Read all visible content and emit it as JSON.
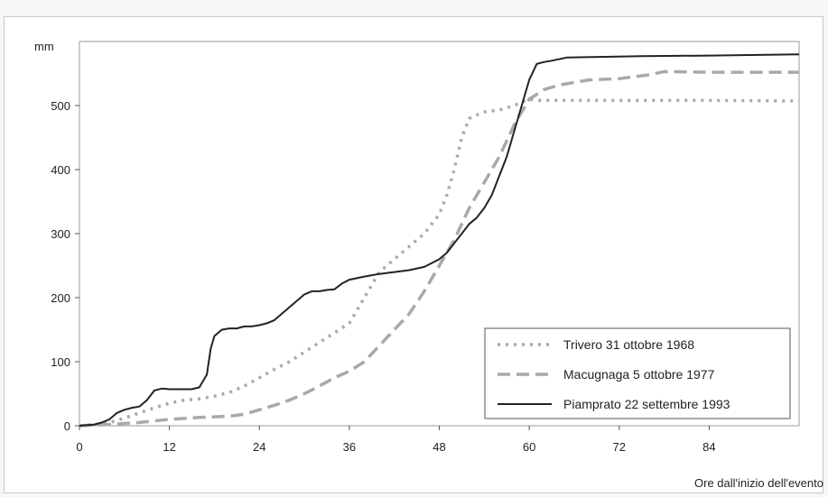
{
  "chart_data": {
    "type": "line",
    "title": "",
    "ylabel": "mm",
    "xlabel": "Ore dall'inizio dell'evento",
    "xlim": [
      0,
      96
    ],
    "ylim": [
      0,
      600
    ],
    "x_ticks": [
      0,
      12,
      24,
      36,
      48,
      60,
      72,
      84
    ],
    "x_tick_labels": [
      "0",
      "12",
      "24",
      "36",
      "48",
      "60",
      "72",
      "84"
    ],
    "y_ticks": [
      0,
      100,
      200,
      300,
      400,
      500
    ],
    "y_tick_labels": [
      "0",
      "100",
      "200",
      "300",
      "400",
      "500"
    ],
    "grid": false,
    "legend_position": "bottom-right",
    "series": [
      {
        "name": "Trivero 31 ottobre 1968",
        "style": "dotted",
        "color": "#a9a9a9",
        "x": [
          0,
          2,
          4,
          6,
          8,
          10,
          12,
          14,
          16,
          18,
          20,
          22,
          24,
          26,
          28,
          30,
          32,
          34,
          36,
          38,
          40,
          42,
          44,
          46,
          48,
          49,
          50,
          51,
          52,
          53,
          54,
          56,
          58,
          60,
          61,
          62,
          64,
          72,
          84,
          96
        ],
        "y": [
          0,
          2,
          5,
          12,
          20,
          28,
          35,
          40,
          42,
          46,
          52,
          62,
          75,
          88,
          100,
          115,
          130,
          145,
          160,
          200,
          240,
          260,
          280,
          300,
          330,
          360,
          400,
          450,
          480,
          485,
          490,
          493,
          500,
          510,
          508,
          508,
          508,
          508,
          508,
          507
        ]
      },
      {
        "name": "Macugnaga 5 ottobre 1977",
        "style": "dashed",
        "color": "#a9a9a9",
        "x": [
          0,
          4,
          8,
          12,
          16,
          20,
          22,
          24,
          26,
          28,
          30,
          32,
          34,
          36,
          38,
          40,
          42,
          44,
          46,
          48,
          50,
          52,
          54,
          56,
          58,
          60,
          62,
          64,
          68,
          72,
          76,
          78,
          84,
          96
        ],
        "y": [
          0,
          2,
          5,
          10,
          13,
          15,
          18,
          25,
          32,
          40,
          50,
          62,
          75,
          85,
          100,
          125,
          150,
          175,
          210,
          250,
          290,
          340,
          380,
          420,
          470,
          510,
          525,
          532,
          540,
          542,
          548,
          553,
          552,
          552
        ]
      },
      {
        "name": "Piamprato 22 settembre 1993",
        "style": "solid",
        "color": "#222222",
        "x": [
          0,
          2,
          3,
          4,
          5,
          6,
          7,
          8,
          9,
          10,
          11,
          12,
          13,
          14,
          15,
          16,
          16.5,
          17,
          17.5,
          18,
          19,
          20,
          21,
          22,
          23,
          24,
          25,
          26,
          27,
          28,
          29,
          30,
          31,
          32,
          33,
          34,
          35,
          36,
          38,
          40,
          42,
          44,
          46,
          48,
          49,
          50,
          51,
          52,
          53,
          54,
          55,
          56,
          57,
          58,
          59,
          60,
          61,
          62,
          63,
          65,
          70,
          75,
          84,
          96
        ],
        "y": [
          0,
          2,
          5,
          10,
          20,
          25,
          28,
          30,
          40,
          55,
          58,
          57,
          57,
          57,
          57,
          60,
          70,
          80,
          120,
          140,
          150,
          152,
          152,
          155,
          155,
          157,
          160,
          165,
          175,
          185,
          195,
          205,
          210,
          210,
          212,
          213,
          222,
          228,
          233,
          237,
          240,
          243,
          248,
          260,
          270,
          285,
          300,
          315,
          325,
          340,
          360,
          390,
          420,
          460,
          500,
          540,
          565,
          568,
          570,
          575,
          576,
          577,
          578,
          580
        ]
      }
    ]
  }
}
